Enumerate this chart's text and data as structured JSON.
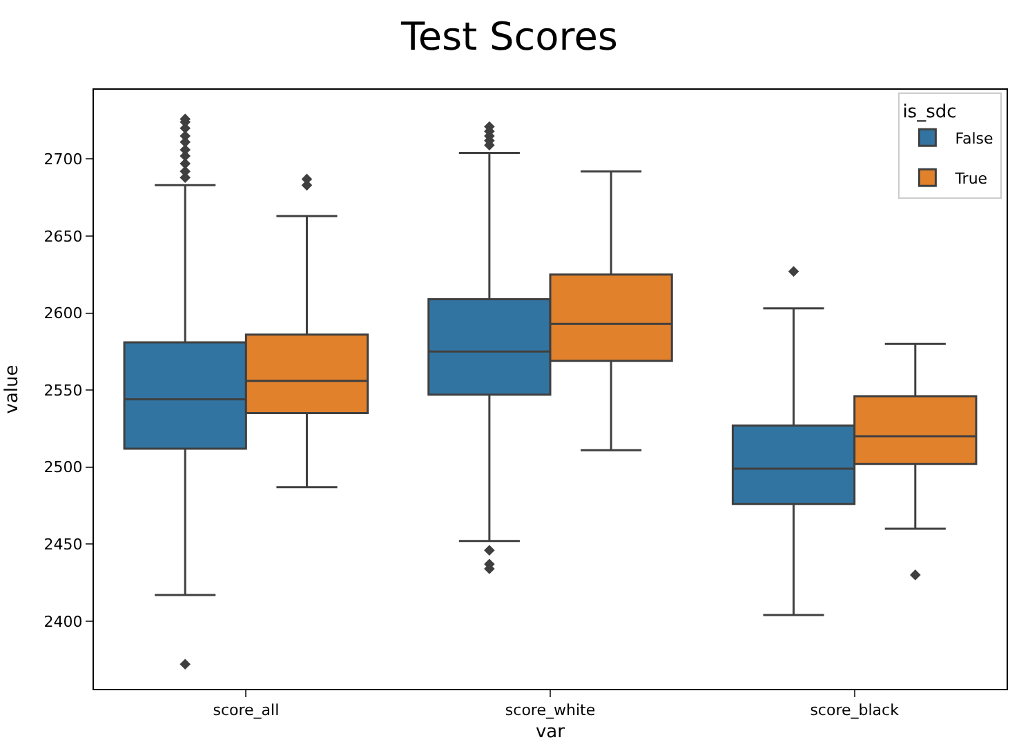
{
  "chart_data": {
    "type": "box",
    "title": "Test Scores",
    "xlabel": "var",
    "ylabel": "value",
    "legend_title": "is_sdc",
    "categories": [
      "score_all",
      "score_white",
      "score_black"
    ],
    "series": [
      {
        "name": "False",
        "color": "#3274a1",
        "boxes": [
          {
            "low": 2417,
            "q1": 2512,
            "median": 2544,
            "q3": 2581,
            "high": 2683,
            "outliers": [
              2372,
              2688,
              2692,
              2697,
              2702,
              2706,
              2711,
              2715,
              2720,
              2724,
              2726
            ]
          },
          {
            "low": 2452,
            "q1": 2547,
            "median": 2575,
            "q3": 2609,
            "high": 2704,
            "outliers": [
              2434,
              2437,
              2446,
              2709,
              2712,
              2715,
              2718,
              2721
            ]
          },
          {
            "low": 2404,
            "q1": 2476,
            "median": 2499,
            "q3": 2527,
            "high": 2603,
            "outliers": [
              2627
            ]
          }
        ]
      },
      {
        "name": "True",
        "color": "#e1812c",
        "boxes": [
          {
            "low": 2487,
            "q1": 2535,
            "median": 2556,
            "q3": 2586,
            "high": 2663,
            "outliers": [
              2683,
              2687
            ]
          },
          {
            "low": 2511,
            "q1": 2569,
            "median": 2593,
            "q3": 2625,
            "high": 2692
          },
          {
            "low": 2460,
            "q1": 2502,
            "median": 2520,
            "q3": 2546,
            "high": 2580,
            "outliers": [
              2430
            ]
          }
        ]
      }
    ],
    "ylim": [
      2356,
      2745
    ],
    "yticks": [
      2400,
      2450,
      2500,
      2550,
      2600,
      2650,
      2700
    ],
    "legend": "top right",
    "marker": "diamond"
  }
}
